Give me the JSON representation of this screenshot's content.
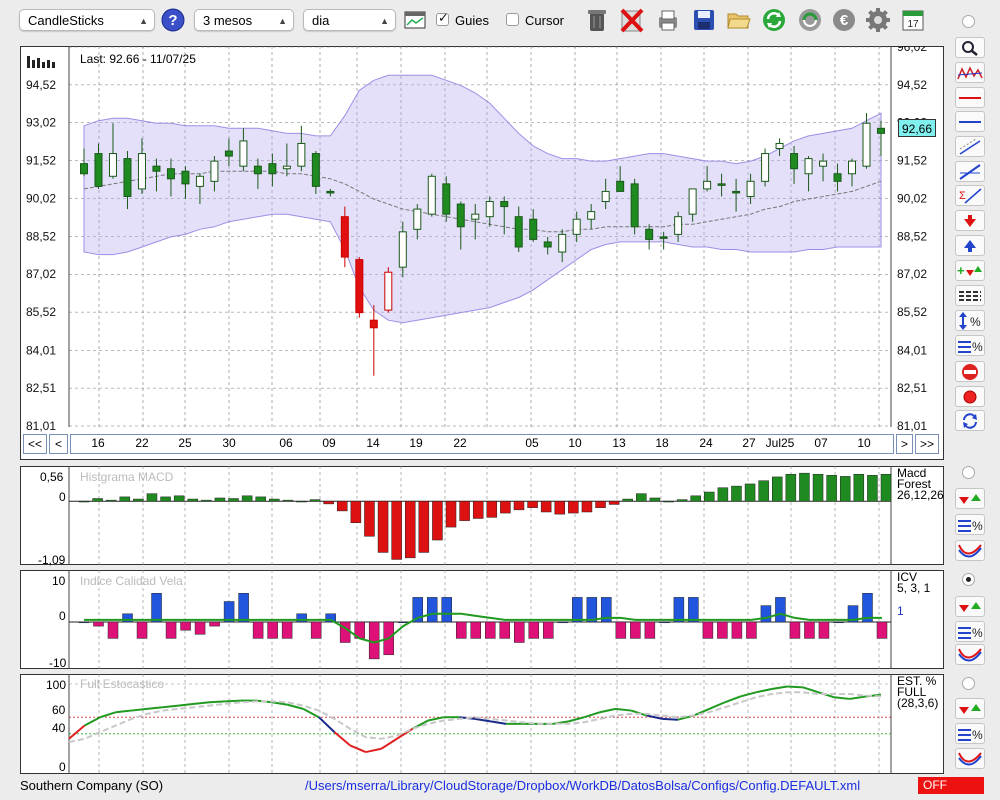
{
  "toolbar": {
    "chart_type": "CandleSticks",
    "period": "3 mesos",
    "interval": "dia",
    "guies_label": "Guies",
    "guies_checked": true,
    "cursor_label": "Cursor",
    "cursor_checked": false,
    "calendar_day": "17",
    "icons": [
      "help-icon",
      "chart-window-icon",
      "trash-icon",
      "delete-icon",
      "print-icon",
      "save-icon",
      "open-folder-icon",
      "refresh-icon",
      "update-icon",
      "euro-icon",
      "settings-icon",
      "calendar-icon"
    ]
  },
  "main_chart": {
    "last_label": "Last: 92.66 - 11/07/25",
    "current_price": "92,66",
    "y_labels_left": [
      "94,52",
      "93,02",
      "91,52",
      "90,02",
      "88,52",
      "87,02",
      "85,52",
      "84,01",
      "82,51",
      "81,01"
    ],
    "y_labels_right": [
      "96,02",
      "94,52",
      "93,02",
      "91,52",
      "90,02",
      "88,52",
      "87,02",
      "85,52",
      "84,01",
      "82,51",
      "81,01"
    ],
    "x_dates": [
      "16",
      "22",
      "25",
      "30",
      "06",
      "09",
      "14",
      "19",
      "22",
      "05",
      "10",
      "13",
      "18",
      "24",
      "27",
      "Jul25",
      "07",
      "10"
    ],
    "nav": {
      "first": "<<",
      "prev": "<",
      "next": ">",
      "last": ">>"
    },
    "colors": {
      "up": "#ffffff",
      "down_green": "#1f8a1f",
      "down_red": "#e01010",
      "band": "#b9aef0"
    }
  },
  "macd": {
    "title": "Histgrama MACD",
    "y_top": "0,56",
    "y_zero": "0",
    "y_bottom": "-1,09",
    "side_label_1": "Macd",
    "side_label_2": "Forest",
    "side_label_3": "26,12,26"
  },
  "icv": {
    "title": "Indice Calidad Vela",
    "y_top": "10",
    "y_zero": "0",
    "y_bottom": "-10",
    "side_label_1": "ICV",
    "side_label_2": "5, 3, 1",
    "side_value": "1"
  },
  "stoch": {
    "title": "Full Estocastico",
    "y_100": "100",
    "y_60": "60",
    "y_40": "40",
    "y_0": "0",
    "side_label_1": "EST. %",
    "side_label_2": "FULL",
    "side_label_3": "(28,3,6)"
  },
  "status": {
    "company": "Southern Company (SO)",
    "path": "/Users/mserra/Library/CloudStorage/Dropbox/WorkDB/DatosBolsa/Configs/Config.DEFAULT.xml",
    "off_label": "OFF"
  },
  "chart_data": [
    {
      "type": "candlestick",
      "title": "",
      "ylim": [
        81.01,
        96.02
      ],
      "grid": true,
      "candles": [
        {
          "o": 91.4,
          "h": 92.0,
          "l": 90.9,
          "c": 91.0
        },
        {
          "o": 91.8,
          "h": 92.2,
          "l": 90.4,
          "c": 90.5
        },
        {
          "o": 90.9,
          "h": 93.0,
          "l": 90.8,
          "c": 91.8
        },
        {
          "o": 91.6,
          "h": 91.9,
          "l": 89.6,
          "c": 90.1
        },
        {
          "o": 90.4,
          "h": 92.4,
          "l": 90.2,
          "c": 91.8
        },
        {
          "o": 91.3,
          "h": 91.6,
          "l": 90.3,
          "c": 91.1
        },
        {
          "o": 91.2,
          "h": 91.6,
          "l": 90.1,
          "c": 90.8
        },
        {
          "o": 91.1,
          "h": 91.3,
          "l": 90.0,
          "c": 90.6
        },
        {
          "o": 90.5,
          "h": 91.0,
          "l": 89.8,
          "c": 90.9
        },
        {
          "o": 90.7,
          "h": 91.7,
          "l": 90.3,
          "c": 91.5
        },
        {
          "o": 91.9,
          "h": 92.4,
          "l": 91.3,
          "c": 91.7
        },
        {
          "o": 91.3,
          "h": 92.8,
          "l": 91.1,
          "c": 92.3
        },
        {
          "o": 91.3,
          "h": 91.6,
          "l": 90.4,
          "c": 91.0
        },
        {
          "o": 91.4,
          "h": 91.8,
          "l": 90.5,
          "c": 91.0
        },
        {
          "o": 91.2,
          "h": 92.2,
          "l": 90.9,
          "c": 91.3
        },
        {
          "o": 91.3,
          "h": 92.9,
          "l": 91.1,
          "c": 92.2
        },
        {
          "o": 91.8,
          "h": 91.9,
          "l": 90.2,
          "c": 90.5
        },
        {
          "o": 90.3,
          "h": 90.4,
          "l": 90.1,
          "c": 90.3
        },
        {
          "o": 89.3,
          "h": 89.7,
          "l": 87.3,
          "c": 87.7
        },
        {
          "o": 87.6,
          "h": 87.7,
          "l": 85.3,
          "c": 85.5
        },
        {
          "o": 85.2,
          "h": 85.8,
          "l": 83.0,
          "c": 84.9
        },
        {
          "o": 85.6,
          "h": 87.3,
          "l": 85.5,
          "c": 87.1
        },
        {
          "o": 87.3,
          "h": 89.1,
          "l": 86.9,
          "c": 88.7
        },
        {
          "o": 88.8,
          "h": 89.8,
          "l": 88.4,
          "c": 89.6
        },
        {
          "o": 89.4,
          "h": 91.0,
          "l": 89.3,
          "c": 90.9
        },
        {
          "o": 90.6,
          "h": 90.9,
          "l": 89.1,
          "c": 89.4
        },
        {
          "o": 89.8,
          "h": 89.9,
          "l": 88.0,
          "c": 88.9
        },
        {
          "o": 89.2,
          "h": 89.8,
          "l": 88.4,
          "c": 89.4
        },
        {
          "o": 89.3,
          "h": 90.1,
          "l": 88.9,
          "c": 89.9
        },
        {
          "o": 89.9,
          "h": 90.1,
          "l": 88.6,
          "c": 89.7
        },
        {
          "o": 89.3,
          "h": 89.7,
          "l": 87.9,
          "c": 88.1
        },
        {
          "o": 89.2,
          "h": 89.6,
          "l": 88.3,
          "c": 88.4
        },
        {
          "o": 88.3,
          "h": 88.5,
          "l": 87.8,
          "c": 88.1
        },
        {
          "o": 87.9,
          "h": 88.8,
          "l": 87.5,
          "c": 88.6
        },
        {
          "o": 88.6,
          "h": 89.5,
          "l": 88.3,
          "c": 89.2
        },
        {
          "o": 89.2,
          "h": 89.8,
          "l": 88.8,
          "c": 89.5
        },
        {
          "o": 89.9,
          "h": 90.8,
          "l": 89.6,
          "c": 90.3
        },
        {
          "o": 90.7,
          "h": 91.3,
          "l": 90.4,
          "c": 90.3
        },
        {
          "o": 90.6,
          "h": 90.8,
          "l": 88.6,
          "c": 88.9
        },
        {
          "o": 88.8,
          "h": 89.0,
          "l": 88.0,
          "c": 88.4
        },
        {
          "o": 88.5,
          "h": 88.7,
          "l": 88.0,
          "c": 88.5
        },
        {
          "o": 88.6,
          "h": 89.5,
          "l": 88.3,
          "c": 89.3
        },
        {
          "o": 89.4,
          "h": 90.4,
          "l": 89.1,
          "c": 90.4
        },
        {
          "o": 90.4,
          "h": 91.3,
          "l": 90.3,
          "c": 90.7
        },
        {
          "o": 90.6,
          "h": 91.0,
          "l": 90.1,
          "c": 90.6
        },
        {
          "o": 90.3,
          "h": 90.8,
          "l": 89.5,
          "c": 90.3
        },
        {
          "o": 90.1,
          "h": 91.0,
          "l": 89.8,
          "c": 90.7
        },
        {
          "o": 90.7,
          "h": 92.0,
          "l": 90.5,
          "c": 91.8
        },
        {
          "o": 92.0,
          "h": 92.4,
          "l": 91.7,
          "c": 92.2
        },
        {
          "o": 91.8,
          "h": 92.1,
          "l": 90.6,
          "c": 91.2
        },
        {
          "o": 91.0,
          "h": 91.7,
          "l": 90.3,
          "c": 91.6
        },
        {
          "o": 91.3,
          "h": 91.8,
          "l": 90.7,
          "c": 91.5
        },
        {
          "o": 91.0,
          "h": 91.4,
          "l": 90.3,
          "c": 90.7
        },
        {
          "o": 91.0,
          "h": 91.6,
          "l": 90.5,
          "c": 91.5
        },
        {
          "o": 91.3,
          "h": 93.4,
          "l": 91.2,
          "c": 93.0
        },
        {
          "o": 92.8,
          "h": 93.1,
          "l": 91.7,
          "c": 92.6
        }
      ],
      "bollinger": {
        "upper": [
          92.9,
          93.1,
          93.2,
          93.2,
          93.1,
          93.0,
          93.0,
          92.9,
          92.9,
          92.9,
          92.8,
          92.8,
          92.8,
          92.7,
          92.6,
          92.6,
          92.5,
          92.5,
          93.3,
          94.3,
          94.7,
          94.9,
          94.9,
          94.9,
          94.9,
          94.7,
          94.5,
          94.2,
          93.8,
          93.2,
          92.6,
          92.1,
          91.8,
          91.6,
          91.6,
          91.5,
          91.5,
          91.6,
          91.7,
          91.8,
          91.8,
          91.7,
          91.6,
          91.5,
          91.5,
          91.4,
          91.5,
          91.7,
          92.0,
          92.3,
          92.5,
          92.6,
          92.7,
          92.8,
          93.1,
          93.4
        ],
        "middle": [
          90.4,
          90.5,
          90.6,
          90.7,
          90.8,
          90.9,
          91.0,
          91.0,
          91.0,
          91.1,
          91.1,
          91.1,
          91.1,
          91.1,
          91.0,
          91.0,
          90.9,
          90.8,
          90.6,
          90.3,
          90.0,
          89.8,
          89.6,
          89.5,
          89.4,
          89.3,
          89.2,
          89.1,
          89.0,
          88.9,
          88.8,
          88.8,
          88.7,
          88.7,
          88.8,
          88.8,
          88.9,
          88.9,
          88.9,
          88.9,
          88.9,
          89.0,
          89.0,
          89.1,
          89.2,
          89.3,
          89.4,
          89.6,
          89.7,
          89.9,
          90.0,
          90.1,
          90.2,
          90.3,
          90.5,
          90.7
        ],
        "lower": [
          87.9,
          87.8,
          87.8,
          87.9,
          88.1,
          88.3,
          88.5,
          88.6,
          88.8,
          88.9,
          89.1,
          89.2,
          89.3,
          89.4,
          89.4,
          89.3,
          89.2,
          89.1,
          88.0,
          86.5,
          85.6,
          85.2,
          85.1,
          85.2,
          85.3,
          85.4,
          85.5,
          85.6,
          85.7,
          85.9,
          86.1,
          86.4,
          86.8,
          87.2,
          87.6,
          88.0,
          88.2,
          88.3,
          88.3,
          88.3,
          88.3,
          88.2,
          88.1,
          88.1,
          88.0,
          88.0,
          87.9,
          87.9,
          87.9,
          87.9,
          88.0,
          88.0,
          88.1,
          88.1,
          88.1,
          88.1
        ]
      }
    },
    {
      "type": "bar",
      "title": "Histgrama MACD",
      "ylim": [
        -1.09,
        0.56
      ],
      "values": [
        0,
        0.05,
        0.02,
        0.08,
        0.04,
        0.14,
        0.08,
        0.1,
        0.04,
        0.02,
        0.06,
        0.05,
        0.1,
        0.08,
        0.04,
        0.02,
        0.0,
        0.03,
        -0.05,
        -0.18,
        -0.4,
        -0.65,
        -0.95,
        -1.08,
        -1.05,
        -0.95,
        -0.72,
        -0.48,
        -0.36,
        -0.32,
        -0.3,
        -0.22,
        -0.16,
        -0.12,
        -0.2,
        -0.24,
        -0.22,
        -0.2,
        -0.12,
        -0.06,
        0.04,
        0.14,
        0.06,
        0.0,
        0.03,
        0.1,
        0.17,
        0.25,
        0.28,
        0.32,
        0.38,
        0.45,
        0.5,
        0.52,
        0.5,
        0.48,
        0.46,
        0.5,
        0.48,
        0.5
      ],
      "colors": {
        "positive": "#1f8a1f",
        "negative": "#dd1111"
      }
    },
    {
      "type": "bar",
      "title": "Indice Calidad Vela",
      "ylim": [
        -10,
        10
      ],
      "values": [
        0,
        -1,
        -4,
        2,
        -4,
        7,
        -4,
        -2,
        -3,
        -1,
        5,
        7,
        -4,
        -4,
        -4,
        2,
        -4,
        2,
        -5,
        -4,
        -9,
        -8,
        0,
        6,
        6,
        6,
        -4,
        -4,
        -4,
        -4,
        -5,
        -4,
        -4,
        0,
        6,
        6,
        6,
        -4,
        -4,
        -4,
        0,
        6,
        6,
        -4,
        -4,
        -4,
        -4,
        4,
        6,
        -4,
        -4,
        -4,
        0,
        4,
        7,
        -4
      ],
      "signal": [
        0.5,
        0.5,
        0.5,
        0.5,
        0.5,
        0.5,
        0.5,
        0.5,
        0.5,
        0.5,
        0.5,
        0.5,
        0.5,
        0.5,
        0.5,
        0.5,
        0.5,
        0.5,
        -1.5,
        -4,
        -5,
        -4,
        -1,
        1,
        2,
        2,
        2,
        1.5,
        1,
        0.5,
        0.5,
        0.5,
        0.5,
        0.5,
        0.5,
        0.5,
        1,
        1,
        0.5,
        0.5,
        0.5,
        0.5,
        0.5,
        0.5,
        0.5,
        0.5,
        0.5,
        1,
        2,
        1,
        0.5,
        0.5,
        0.5,
        0.5,
        1,
        1
      ],
      "colors": {
        "positive": "#2255dd",
        "negative": "#dd1177",
        "signal": "#1f9a1f"
      }
    },
    {
      "type": "line",
      "title": "Full Estocastico",
      "ylim": [
        0,
        100
      ],
      "series": [
        {
          "values": [
            34,
            50,
            60,
            66,
            68,
            70,
            72,
            74,
            76,
            78,
            79,
            80,
            80,
            78,
            75,
            70,
            60,
            42,
            26,
            18,
            22,
            34,
            46,
            56,
            60,
            60,
            58,
            55,
            52,
            52,
            52,
            52,
            55,
            60,
            66,
            70,
            68,
            62,
            58,
            57,
            62,
            70,
            78,
            85,
            90,
            94,
            97,
            96,
            90,
            84,
            82,
            85,
            87
          ],
          "color": "#1f9a1f"
        },
        {
          "values": [
            30,
            34,
            42,
            50,
            58,
            64,
            68,
            70,
            72,
            74,
            76,
            78,
            79,
            79,
            78,
            74,
            68,
            58,
            46,
            36,
            34,
            38,
            46,
            52,
            56,
            58,
            60,
            58,
            56,
            54,
            52,
            52,
            52,
            54,
            58,
            62,
            64,
            64,
            62,
            60,
            62,
            66,
            72,
            78,
            84,
            88,
            90,
            90,
            88,
            88,
            88,
            86,
            85
          ],
          "color": "#c8c8c8"
        }
      ],
      "levels": [
        60,
        40
      ]
    }
  ]
}
